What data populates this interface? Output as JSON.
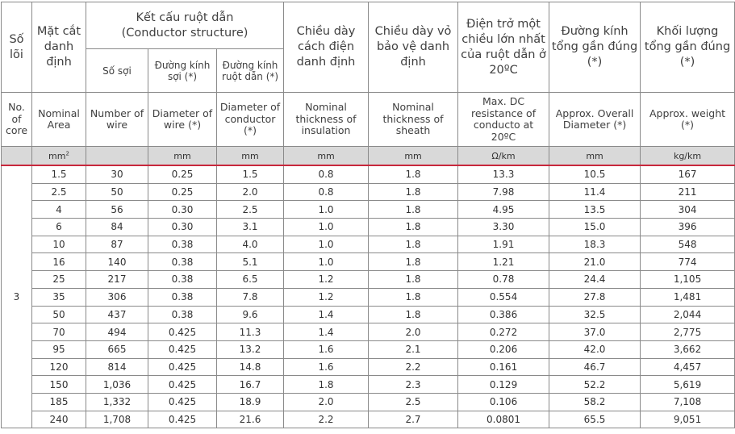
{
  "headers": {
    "so_loi": "Số lõi",
    "mat_cat": "Mặt cắt danh định",
    "ket_cau": "Kết cấu ruột dẫn",
    "ket_cau_en": "(Conductor structure)",
    "so_soi": "Số sợi",
    "dk_soi": "Đường kính sợi (*)",
    "dk_ruot": "Đường kính ruột dẫn (*)",
    "chieu_day_cd": "Chiều dày cách điện danh định",
    "chieu_day_vo": "Chiều dày vỏ bảo vệ danh định",
    "dien_tro": "Điện trở một chiều lớn nhất của ruột dẫn ở 20ºC",
    "duong_kinh": "Đường kính tổng gần đúng (*)",
    "khoi_luong": "Khối lượng tổng gần đúng (*)"
  },
  "headers_en": {
    "no_core": "No. of core",
    "area": "Nominal Area",
    "num_wire": "Number of wire",
    "dia_wire": "Diameter of wire (*)",
    "dia_cond": "Diameter of conductor (*)",
    "thick_ins": "Nominal thickness of insulation",
    "thick_sheath": "Nominal thickness of sheath",
    "resistance": "Max. DC resistance of conducto at 20ºC",
    "overall_dia": "Approx. Overall Diameter (*)",
    "weight": "Approx. weight (*)"
  },
  "units": {
    "area": "mm",
    "area_sup": "2",
    "wire": "",
    "dia_wire": "mm",
    "dia_cond": "mm",
    "ins": "mm",
    "sheath": "mm",
    "res": "Ω/km",
    "overall": "mm",
    "weight": "kg/km"
  },
  "core_count": "3",
  "rows": [
    [
      "1.5",
      "30",
      "0.25",
      "1.5",
      "0.8",
      "1.8",
      "13.3",
      "10.5",
      "167"
    ],
    [
      "2.5",
      "50",
      "0.25",
      "2.0",
      "0.8",
      "1.8",
      "7.98",
      "11.4",
      "211"
    ],
    [
      "4",
      "56",
      "0.30",
      "2.5",
      "1.0",
      "1.8",
      "4.95",
      "13.5",
      "304"
    ],
    [
      "6",
      "84",
      "0.30",
      "3.1",
      "1.0",
      "1.8",
      "3.30",
      "15.0",
      "396"
    ],
    [
      "10",
      "87",
      "0.38",
      "4.0",
      "1.0",
      "1.8",
      "1.91",
      "18.3",
      "548"
    ],
    [
      "16",
      "140",
      "0.38",
      "5.1",
      "1.0",
      "1.8",
      "1.21",
      "21.0",
      "774"
    ],
    [
      "25",
      "217",
      "0.38",
      "6.5",
      "1.2",
      "1.8",
      "0.78",
      "24.4",
      "1,105"
    ],
    [
      "35",
      "306",
      "0.38",
      "7.8",
      "1.2",
      "1.8",
      "0.554",
      "27.8",
      "1,481"
    ],
    [
      "50",
      "437",
      "0.38",
      "9.6",
      "1.4",
      "1.8",
      "0.386",
      "32.5",
      "2,044"
    ],
    [
      "70",
      "494",
      "0.425",
      "11.3",
      "1.4",
      "2.0",
      "0.272",
      "37.0",
      "2,775"
    ],
    [
      "95",
      "665",
      "0.425",
      "13.2",
      "1.6",
      "2.1",
      "0.206",
      "42.0",
      "3,662"
    ],
    [
      "120",
      "814",
      "0.425",
      "14.8",
      "1.6",
      "2.2",
      "0.161",
      "46.7",
      "4,457"
    ],
    [
      "150",
      "1,036",
      "0.425",
      "16.7",
      "1.8",
      "2.3",
      "0.129",
      "52.2",
      "5,619"
    ],
    [
      "185",
      "1,332",
      "0.425",
      "18.9",
      "2.0",
      "2.5",
      "0.106",
      "58.2",
      "7,108"
    ],
    [
      "240",
      "1,708",
      "0.425",
      "21.6",
      "2.2",
      "2.7",
      "0.0801",
      "65.5",
      "9,051"
    ]
  ]
}
